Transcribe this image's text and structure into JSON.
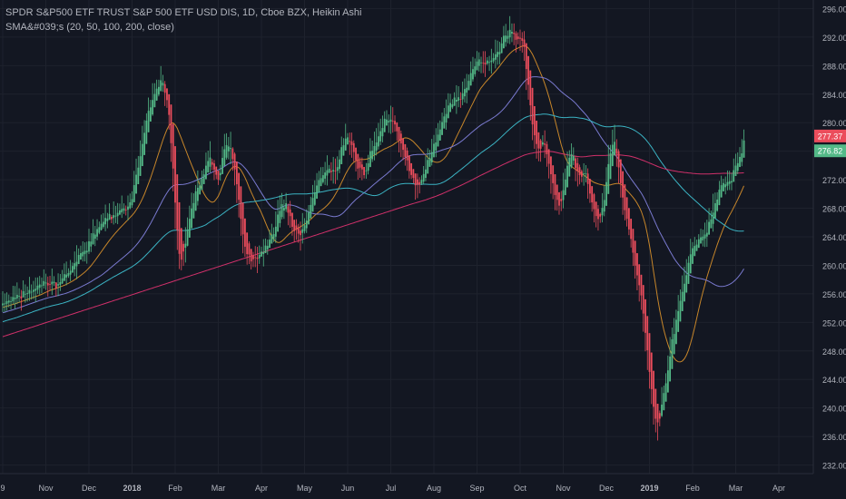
{
  "legend": {
    "title": "SPDR S&P500 ETF TRUST S&P 500 ETF USD DIS, 1D, Cboe BZX, Heikin Ashi",
    "indicator": "SMA&#039;s (20, 50, 100, 200, close)"
  },
  "colors": {
    "background": "#131722",
    "grid": "#1e222d",
    "axis_text": "#b2b5be",
    "up": "#53b987",
    "down": "#eb4d5c",
    "sma20": "#c7862a",
    "sma50": "#7a7ad0",
    "sma100": "#3bb3c3",
    "sma200": "#d0306a",
    "badge_red": "#eb4d5c",
    "badge_green": "#53b987"
  },
  "chart_data": {
    "type": "candlestick",
    "chart_style": "Heikin Ashi",
    "y_axis": {
      "ylim": [
        230.8,
        297.2
      ],
      "ticks": [
        "296.00",
        "292.00",
        "288.00",
        "284.00",
        "280.00",
        "276.00",
        "272.00",
        "268.00",
        "264.00",
        "260.00",
        "256.00",
        "252.00",
        "248.00",
        "244.00",
        "240.00",
        "236.00",
        "232.00"
      ]
    },
    "x_axis": {
      "ticks": [
        "9",
        "Nov",
        "Dec",
        "2018",
        "Feb",
        "Mar",
        "Apr",
        "May",
        "Jun",
        "Jul",
        "Aug",
        "Sep",
        "Oct",
        "Nov",
        "Dec",
        "2019",
        "Feb",
        "Mar",
        "Apr"
      ],
      "days_per_label_index": [
        0,
        21,
        42,
        63,
        84,
        105,
        126,
        147,
        168,
        189,
        210,
        231,
        252,
        273,
        294,
        315,
        336,
        357,
        378
      ]
    },
    "price_path": [
      [
        0,
        254.6
      ],
      [
        5,
        255.2
      ],
      [
        10,
        256.0
      ],
      [
        15,
        256.8
      ],
      [
        20,
        257.5
      ],
      [
        25,
        257.2
      ],
      [
        30,
        258.2
      ],
      [
        35,
        260.5
      ],
      [
        40,
        262.2
      ],
      [
        45,
        265.0
      ],
      [
        50,
        266.5
      ],
      [
        55,
        267.2
      ],
      [
        60,
        268.0
      ],
      [
        63,
        270.0
      ],
      [
        67,
        276.0
      ],
      [
        70,
        281.0
      ],
      [
        74,
        284.5
      ],
      [
        77,
        286.0
      ],
      [
        80,
        282.5
      ],
      [
        82,
        276.0
      ],
      [
        84,
        266.0
      ],
      [
        86,
        260.5
      ],
      [
        88,
        262.5
      ],
      [
        90,
        266.0
      ],
      [
        94,
        270.5
      ],
      [
        98,
        273.5
      ],
      [
        100,
        275.0
      ],
      [
        102,
        273.5
      ],
      [
        105,
        272.0
      ],
      [
        107,
        276.0
      ],
      [
        109,
        277.5
      ],
      [
        111,
        276.0
      ],
      [
        113,
        272.0
      ],
      [
        115,
        268.0
      ],
      [
        117,
        263.0
      ],
      [
        120,
        260.5
      ],
      [
        123,
        261.0
      ],
      [
        126,
        262.0
      ],
      [
        129,
        263.5
      ],
      [
        132,
        265.0
      ],
      [
        134,
        267.5
      ],
      [
        136,
        269.0
      ],
      [
        138,
        268.0
      ],
      [
        140,
        266.0
      ],
      [
        142,
        264.5
      ],
      [
        145,
        264.5
      ],
      [
        148,
        267.0
      ],
      [
        151,
        270.0
      ],
      [
        154,
        272.0
      ],
      [
        157,
        273.5
      ],
      [
        160,
        273.0
      ],
      [
        163,
        274.5
      ],
      [
        165,
        276.5
      ],
      [
        167,
        278.0
      ],
      [
        169,
        277.5
      ],
      [
        171,
        275.5
      ],
      [
        173,
        273.5
      ],
      [
        176,
        273.0
      ],
      [
        179,
        276.0
      ],
      [
        182,
        277.5
      ],
      [
        185,
        280.0
      ],
      [
        188,
        280.5
      ],
      [
        191,
        279.5
      ],
      [
        193,
        277.5
      ],
      [
        195,
        276.0
      ],
      [
        197,
        273.5
      ],
      [
        199,
        272.5
      ],
      [
        201,
        271.0
      ],
      [
        203,
        272.0
      ],
      [
        205,
        273.0
      ],
      [
        208,
        275.5
      ],
      [
        211,
        277.5
      ],
      [
        214,
        280.5
      ],
      [
        217,
        282.5
      ],
      [
        220,
        283.5
      ],
      [
        222,
        283.0
      ],
      [
        224,
        284.5
      ],
      [
        227,
        286.5
      ],
      [
        230,
        288.5
      ],
      [
        232,
        289.2
      ],
      [
        234,
        288.0
      ],
      [
        236,
        288.5
      ],
      [
        239,
        289.5
      ],
      [
        242,
        290.5
      ],
      [
        244,
        292.0
      ],
      [
        246,
        292.8
      ],
      [
        248,
        292.5
      ],
      [
        250,
        291.5
      ],
      [
        252,
        292.0
      ],
      [
        254,
        290.0
      ],
      [
        255,
        286.0
      ],
      [
        257,
        281.0
      ],
      [
        259,
        277.5
      ],
      [
        261,
        276.0
      ],
      [
        263,
        277.5
      ],
      [
        265,
        275.0
      ],
      [
        267,
        272.0
      ],
      [
        269,
        269.0
      ],
      [
        271,
        268.5
      ],
      [
        273,
        271.5
      ],
      [
        275,
        274.5
      ],
      [
        277,
        276.0
      ],
      [
        279,
        273.5
      ],
      [
        281,
        272.0
      ],
      [
        283,
        273.5
      ],
      [
        285,
        270.5
      ],
      [
        287,
        268.0
      ],
      [
        289,
        266.5
      ],
      [
        291,
        267.0
      ],
      [
        293,
        270.5
      ],
      [
        295,
        275.0
      ],
      [
        297,
        277.5
      ],
      [
        299,
        274.5
      ],
      [
        301,
        270.5
      ],
      [
        303,
        266.5
      ],
      [
        305,
        264.5
      ],
      [
        307,
        261.0
      ],
      [
        309,
        258.0
      ],
      [
        311,
        254.5
      ],
      [
        313,
        249.5
      ],
      [
        315,
        243.5
      ],
      [
        317,
        239.0
      ],
      [
        319,
        237.5
      ],
      [
        321,
        241.0
      ],
      [
        323,
        244.5
      ],
      [
        325,
        248.5
      ],
      [
        327,
        251.5
      ],
      [
        329,
        254.5
      ],
      [
        331,
        257.0
      ],
      [
        333,
        259.5
      ],
      [
        335,
        262.0
      ],
      [
        337,
        263.0
      ],
      [
        339,
        263.5
      ],
      [
        341,
        264.0
      ],
      [
        343,
        265.0
      ],
      [
        345,
        267.0
      ],
      [
        347,
        269.0
      ],
      [
        349,
        271.0
      ],
      [
        351,
        271.5
      ],
      [
        353,
        271.5
      ],
      [
        355,
        272.5
      ],
      [
        357,
        274.5
      ],
      [
        359,
        275.5
      ],
      [
        361,
        277.4
      ]
    ],
    "last_index": 361,
    "sma_periods": [
      20,
      50,
      100,
      200
    ],
    "sma200_start": 250.0,
    "price_badges": [
      {
        "label": "277.37",
        "value": 277.37,
        "color": "red"
      },
      {
        "label": "276.82",
        "value": 276.82,
        "color": "green"
      }
    ]
  }
}
